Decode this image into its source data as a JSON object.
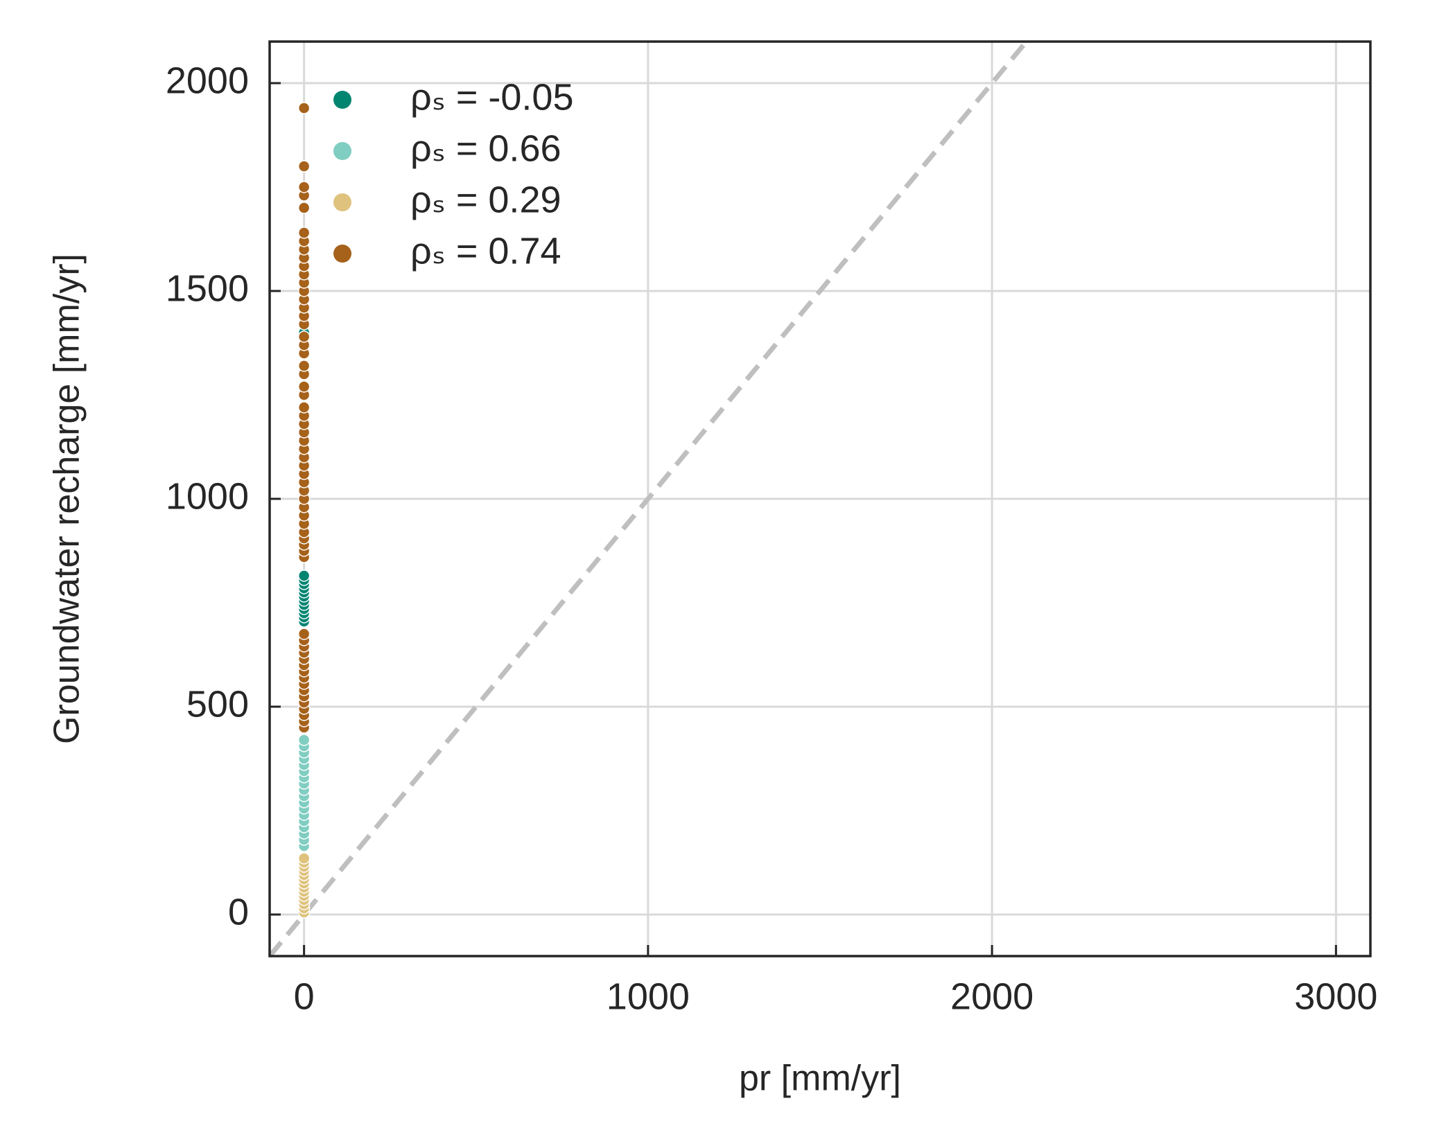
{
  "chart_data": {
    "type": "scatter",
    "x_label": "pr [mm/yr]",
    "y_label": "Groundwater recharge [mm/yr]",
    "xlim": [
      -100,
      3100
    ],
    "ylim": [
      -100,
      2100
    ],
    "xticks": [
      0,
      1000,
      2000,
      3000
    ],
    "yticks": [
      0,
      500,
      1000,
      1500,
      2000
    ],
    "grid": true,
    "legend": "upper left",
    "identity_line": true,
    "identity_line_color": "#bfbfbf",
    "series": [
      {
        "name": "ρₛ = -0.05",
        "color": "#018571",
        "x": [
          0,
          0,
          0,
          0,
          0,
          0,
          0,
          0,
          0,
          0,
          0,
          0,
          0
        ],
        "y": [
          705,
          715,
          725,
          735,
          745,
          755,
          765,
          775,
          785,
          795,
          805,
          815,
          1400
        ]
      },
      {
        "name": "ρₛ = 0.66",
        "color": "#80cdc1",
        "x": [
          0,
          0,
          0,
          0,
          0,
          0,
          0,
          0,
          0,
          0,
          0,
          0,
          0,
          0,
          0,
          0,
          0,
          0
        ],
        "y": [
          165,
          180,
          195,
          210,
          225,
          240,
          255,
          270,
          285,
          300,
          315,
          330,
          345,
          360,
          375,
          390,
          405,
          420
        ]
      },
      {
        "name": "ρₛ = 0.29",
        "color": "#dfc27d",
        "x": [
          0,
          0,
          0,
          0,
          0,
          0,
          0,
          0,
          0,
          0,
          0,
          0,
          0,
          0
        ],
        "y": [
          5,
          15,
          25,
          35,
          45,
          55,
          65,
          75,
          85,
          95,
          105,
          115,
          125,
          135
        ]
      },
      {
        "name": "ρₛ = 0.74",
        "color": "#a6611a",
        "x": [
          0,
          0,
          0,
          0,
          0,
          0,
          0,
          0,
          0,
          0,
          0,
          0,
          0,
          0,
          0,
          0,
          0,
          0,
          0,
          0,
          0,
          0,
          0,
          0,
          0,
          0,
          0,
          0,
          0,
          0,
          0,
          0,
          0,
          0,
          0,
          0,
          0,
          0,
          0,
          0,
          0,
          0,
          0,
          0,
          0,
          0,
          0,
          0,
          0,
          0,
          0,
          0,
          0,
          0,
          0,
          0,
          0,
          0,
          0,
          0
        ],
        "y": [
          450,
          465,
          480,
          495,
          510,
          525,
          540,
          555,
          570,
          585,
          600,
          615,
          630,
          645,
          660,
          675,
          860,
          875,
          890,
          905,
          920,
          940,
          960,
          980,
          1000,
          1020,
          1040,
          1060,
          1080,
          1100,
          1120,
          1140,
          1160,
          1180,
          1200,
          1220,
          1250,
          1270,
          1300,
          1320,
          1350,
          1370,
          1390,
          1420,
          1440,
          1460,
          1480,
          1500,
          1520,
          1540,
          1560,
          1580,
          1600,
          1620,
          1640,
          1700,
          1730,
          1750,
          1800,
          1940
        ]
      }
    ]
  }
}
